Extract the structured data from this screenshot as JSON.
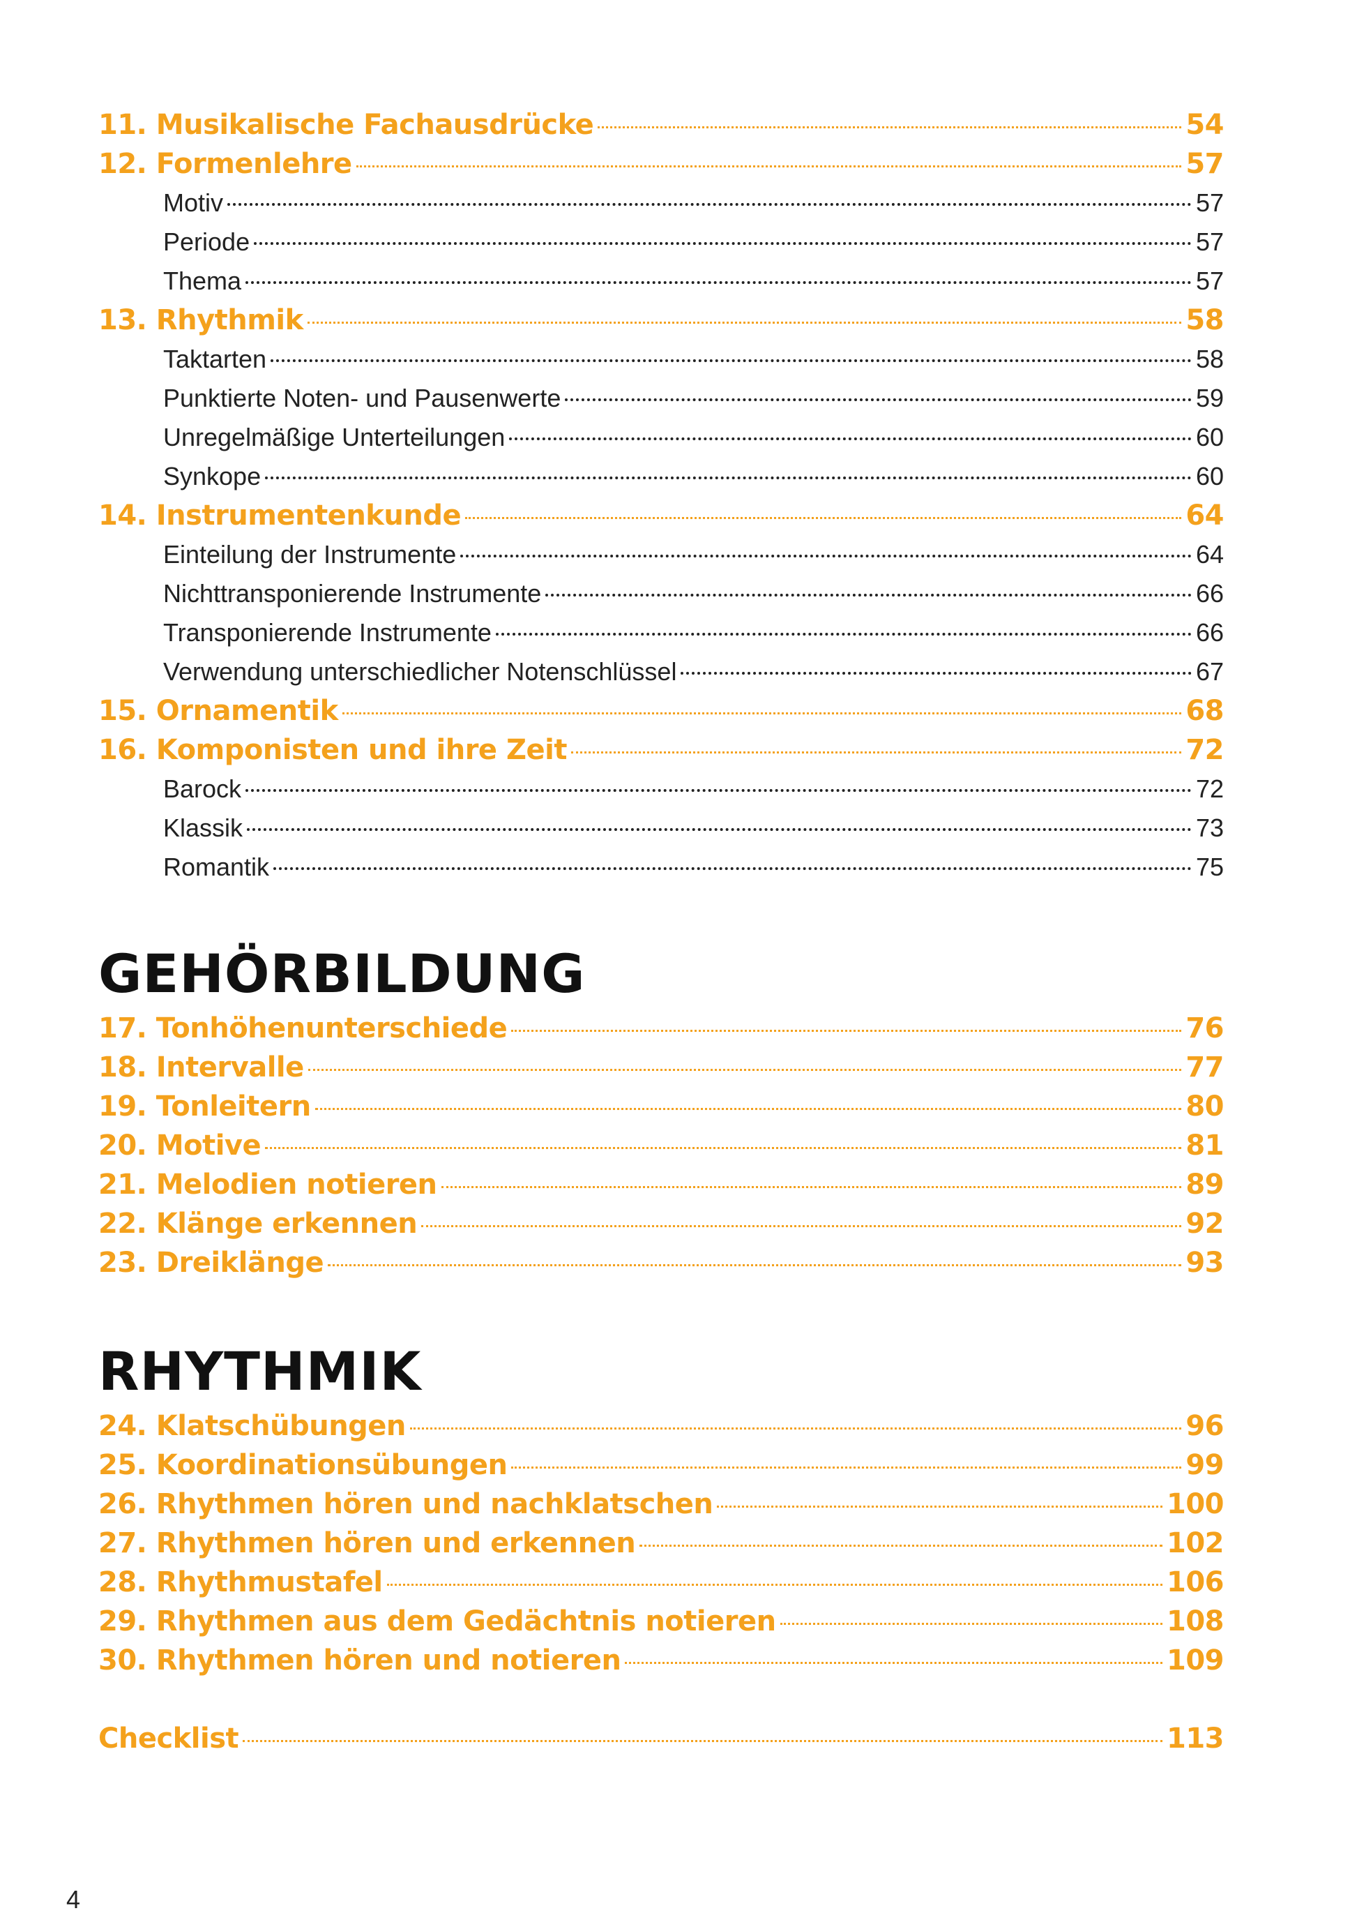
{
  "sections": [
    {
      "entries": [
        {
          "title": "11. Musikalische Fachausdrücke",
          "page": 54
        },
        {
          "title": "12. Formenlehre",
          "page": 57,
          "subentries": [
            {
              "title": "Motiv",
              "page": 57
            },
            {
              "title": "Periode",
              "page": 57
            },
            {
              "title": "Thema",
              "page": 57
            }
          ]
        },
        {
          "title": "13. Rhythmik",
          "page": 58,
          "subentries": [
            {
              "title": "Taktarten",
              "page": 58
            },
            {
              "title": "Punktierte Noten- und Pausenwerte",
              "page": 59
            },
            {
              "title": "Unregelmäßige Unterteilungen",
              "page": 60
            },
            {
              "title": "Synkope",
              "page": 60
            }
          ]
        },
        {
          "title": "14. Instrumentenkunde",
          "page": 64,
          "subentries": [
            {
              "title": "Einteilung der Instrumente",
              "page": 64
            },
            {
              "title": "Nichttransponierende Instrumente",
              "page": 66
            },
            {
              "title": "Transponierende Instrumente",
              "page": 66
            },
            {
              "title": "Verwendung unterschiedlicher Notenschlüssel",
              "page": 67
            }
          ]
        },
        {
          "title": "15. Ornamentik",
          "page": 68
        },
        {
          "title": "16. Komponisten und ihre Zeit",
          "page": 72,
          "subentries": [
            {
              "title": "Barock",
              "page": 72
            },
            {
              "title": "Klassik",
              "page": 73
            },
            {
              "title": "Romantik",
              "page": 75
            }
          ]
        }
      ]
    },
    {
      "heading": "GEHÖRBILDUNG",
      "entries": [
        {
          "title": "17. Tonhöhenunterschiede",
          "page": 76
        },
        {
          "title": "18. Intervalle",
          "page": 77
        },
        {
          "title": "19. Tonleitern",
          "page": 80
        },
        {
          "title": "20. Motive",
          "page": 81
        },
        {
          "title": "21. Melodien notieren",
          "page": 89
        },
        {
          "title": "22. Klänge erkennen",
          "page": 92
        },
        {
          "title": "23. Dreiklänge",
          "page": 93
        }
      ]
    },
    {
      "heading": "RHYTHMIK",
      "entries": [
        {
          "title": "24. Klatschübungen",
          "page": 96
        },
        {
          "title": "25. Koordinationsübungen",
          "page": 99
        },
        {
          "title": "26. Rhythmen hören und nachklatschen",
          "page": 100
        },
        {
          "title": "27. Rhythmen hören und erkennen",
          "page": 102
        },
        {
          "title": "28. Rhythmustafel",
          "page": 106
        },
        {
          "title": "29. Rhythmen aus dem Gedächtnis notieren",
          "page": 108
        },
        {
          "title": "30. Rhythmen hören und notieren",
          "page": 109
        }
      ]
    },
    {
      "entries": [
        {
          "title": "Checklist",
          "page": 113
        }
      ]
    }
  ],
  "page_number": 4
}
